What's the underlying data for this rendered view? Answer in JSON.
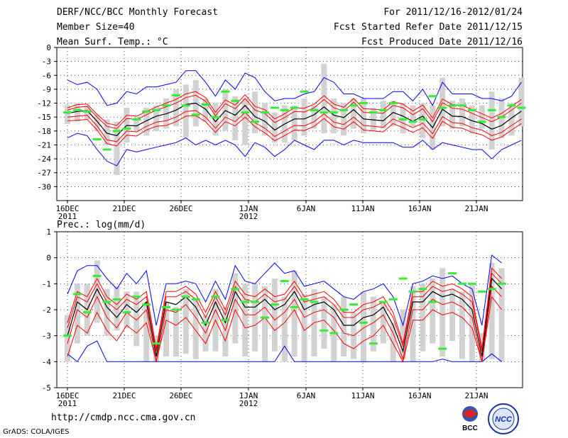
{
  "header": {
    "title": "DERF/NCC/BCC Monthly Forecast",
    "member_size": "Member Size=40",
    "variable1": "Mean Surf. Temp.: °C",
    "period": "For 2011/12/16-2012/01/24",
    "fcst_started": "Fcst Started Refer Date 2011/12/15",
    "fcst_produced": "Fcst Produced Date 2011/12/16"
  },
  "variable2": "Prec.: log(mm/d)",
  "footer": {
    "url": "http://cmdp.ncc.cma.gov.cn",
    "grads": "GrADS: COLA/IGES"
  },
  "logos": {
    "bcc": "BCC",
    "ncc": "NCC"
  },
  "colors": {
    "blue": "#0000ff",
    "red": "#ff0000",
    "black": "#000000",
    "green": "#33ee33",
    "gray": "#d2d2d2"
  },
  "chart_data": [
    {
      "type": "line",
      "title": "Mean Surf. Temp.: °C",
      "x_tick_labels": [
        "16DEC",
        "21DEC",
        "26DEC",
        "1JAN",
        "6JAN",
        "11JAN",
        "16JAN",
        "21JAN"
      ],
      "x_year_labels": [
        "2011",
        "2012"
      ],
      "ylim": [
        -33,
        0
      ],
      "yticks": [
        0,
        -3,
        -6,
        -9,
        -12,
        -15,
        -18,
        -21,
        -24,
        -27,
        -30
      ],
      "mean": [
        -14.2,
        -13.8,
        -13.6,
        -15.9,
        -18.5,
        -19.0,
        -16.8,
        -16.9,
        -15.8,
        -14.8,
        -14.3,
        -13.5,
        -12.3,
        -12.0,
        -13.3,
        -16.0,
        -13.6,
        -14.6,
        -12.5,
        -14.9,
        -15.9,
        -17.8,
        -16.5,
        -15.4,
        -15.4,
        -14.5,
        -12.8,
        -14.6,
        -15.1,
        -13.4,
        -15.4,
        -15.6,
        -15.8,
        -14.0,
        -14.8,
        -15.9,
        -14.8,
        -17.3,
        -13.3,
        -14.8,
        -14.9,
        -15.8,
        -16.4,
        -17.6,
        -16.8,
        -15.2,
        -13.7
      ],
      "upper_red": [
        -13.5,
        -12.9,
        -12.7,
        -15.0,
        -17.0,
        -17.5,
        -15.3,
        -15.5,
        -14.5,
        -13.5,
        -12.8,
        -12.0,
        -10.8,
        -10.3,
        -11.6,
        -14.7,
        -12.1,
        -13.2,
        -11.0,
        -13.5,
        -14.2,
        -16.2,
        -15.1,
        -13.8,
        -13.9,
        -13.0,
        -11.2,
        -13.0,
        -13.7,
        -11.8,
        -14.0,
        -14.1,
        -14.2,
        -12.5,
        -13.0,
        -14.5,
        -13.2,
        -16.0,
        -11.9,
        -13.1,
        -13.3,
        -14.2,
        -15.1,
        -16.0,
        -15.0,
        -13.5,
        -12.0
      ],
      "upper_red2": [
        -13.0,
        -12.3,
        -12.2,
        -14.4,
        -16.3,
        -16.8,
        -14.6,
        -14.8,
        -13.8,
        -12.8,
        -12.0,
        -11.2,
        -10.0,
        -9.5,
        -10.8,
        -14.0,
        -11.3,
        -12.4,
        -10.2,
        -12.7,
        -13.4,
        -15.4,
        -14.3,
        -13.0,
        -13.1,
        -12.2,
        -10.4,
        -12.2,
        -12.9,
        -11.0,
        -13.2,
        -13.3,
        -13.4,
        -11.7,
        -12.2,
        -13.7,
        -12.4,
        -15.2,
        -11.1,
        -12.3,
        -12.5,
        -13.4,
        -14.3,
        -15.2,
        -14.2,
        -12.7,
        -11.2
      ],
      "lower_red": [
        -15.0,
        -14.8,
        -14.6,
        -16.9,
        -19.9,
        -20.3,
        -18.0,
        -18.2,
        -17.0,
        -16.1,
        -15.8,
        -15.0,
        -13.8,
        -13.6,
        -15.0,
        -17.4,
        -15.0,
        -16.0,
        -14.0,
        -16.2,
        -17.4,
        -19.2,
        -18.0,
        -16.8,
        -16.9,
        -16.0,
        -14.3,
        -16.1,
        -16.6,
        -15.0,
        -16.8,
        -17.0,
        -17.2,
        -15.4,
        -16.3,
        -17.3,
        -16.3,
        -18.6,
        -14.9,
        -16.2,
        -16.4,
        -17.3,
        -17.8,
        -19.0,
        -18.3,
        -16.8,
        -15.4
      ],
      "lower_red2": [
        -15.8,
        -15.7,
        -15.5,
        -17.8,
        -20.7,
        -21.2,
        -18.9,
        -19.1,
        -17.8,
        -17.0,
        -16.8,
        -16.0,
        -14.8,
        -14.7,
        -16.0,
        -18.3,
        -16.0,
        -16.9,
        -15.0,
        -17.1,
        -18.4,
        -20.1,
        -19.0,
        -17.8,
        -17.9,
        -17.0,
        -15.3,
        -17.1,
        -17.6,
        -16.0,
        -17.8,
        -18.0,
        -18.2,
        -16.4,
        -17.3,
        -18.3,
        -17.3,
        -19.6,
        -15.9,
        -17.2,
        -17.4,
        -18.3,
        -18.8,
        -20.0,
        -19.3,
        -17.8,
        -16.4
      ],
      "max_blue": [
        -7.0,
        -8.0,
        -7.5,
        -9.0,
        -12.5,
        -12.0,
        -9.5,
        -10.0,
        -8.5,
        -8.5,
        -8.0,
        -7.5,
        -5.0,
        -5.0,
        -7.5,
        -10.5,
        -7.0,
        -9.0,
        -5.5,
        -6.5,
        -9.5,
        -11.5,
        -11.0,
        -11.0,
        -10.0,
        -9.5,
        -6.5,
        -7.5,
        -10.0,
        -10.0,
        -11.0,
        -11.0,
        -11.0,
        -9.5,
        -9.5,
        -11.5,
        -9.0,
        -12.5,
        -7.5,
        -10.0,
        -10.0,
        -10.0,
        -11.0,
        -11.0,
        -11.5,
        -10.5,
        -7.5
      ],
      "min_blue": [
        -19.5,
        -18.5,
        -19.0,
        -22.0,
        -24.5,
        -25.5,
        -22.0,
        -22.5,
        -22.0,
        -21.5,
        -21.0,
        -20.5,
        -19.5,
        -21.0,
        -20.0,
        -21.0,
        -20.0,
        -21.0,
        -23.5,
        -20.5,
        -21.5,
        -23.5,
        -22.0,
        -20.0,
        -21.0,
        -22.0,
        -20.0,
        -20.0,
        -21.0,
        -20.0,
        -20.5,
        -20.5,
        -20.5,
        -20.5,
        -21.5,
        -21.5,
        -20.0,
        -22.0,
        -20.5,
        -21.0,
        -21.5,
        -22.0,
        -22.0,
        -24.0,
        -22.0,
        -21.0,
        -20.0
      ],
      "gray_bars": [
        [
          -16.5,
          -12.5
        ],
        [
          -16.0,
          -12.0
        ],
        [
          -15.5,
          -12.5
        ],
        [
          -18.0,
          -14.5
        ],
        [
          -21.0,
          -15.5
        ],
        [
          -27.5,
          -16.0
        ],
        [
          -20.5,
          -13.0
        ],
        [
          -18.0,
          -15.0
        ],
        [
          -19.0,
          -13.0
        ],
        [
          -18.0,
          -12.5
        ],
        [
          -17.5,
          -11.0
        ],
        [
          -17.0,
          -9.0
        ],
        [
          -19.5,
          -8.0
        ],
        [
          -17.0,
          -7.0
        ],
        [
          -16.0,
          -11.0
        ],
        [
          -19.0,
          -12.0
        ],
        [
          -18.0,
          -9.0
        ],
        [
          -20.0,
          -10.5
        ],
        [
          -21.0,
          -11.0
        ],
        [
          -18.5,
          -9.5
        ],
        [
          -19.0,
          -12.0
        ],
        [
          -20.5,
          -14.0
        ],
        [
          -20.5,
          -12.5
        ],
        [
          -20.0,
          -12.5
        ],
        [
          -19.0,
          -11.0
        ],
        [
          -17.5,
          -12.5
        ],
        [
          -18.5,
          -3.5
        ],
        [
          -18.5,
          -11.0
        ],
        [
          -19.0,
          -12.0
        ],
        [
          -17.5,
          -11.0
        ],
        [
          -18.5,
          -11.0
        ],
        [
          -18.0,
          -13.0
        ],
        [
          -17.5,
          -11.5
        ],
        [
          -17.0,
          -11.5
        ],
        [
          -18.5,
          -12.0
        ],
        [
          -17.0,
          -12.5
        ],
        [
          -19.5,
          -12.0
        ],
        [
          -22.0,
          -12.5
        ],
        [
          -17.0,
          -6.5
        ],
        [
          -17.5,
          -11.5
        ],
        [
          -17.0,
          -11.0
        ],
        [
          -18.5,
          -12.5
        ],
        [
          -17.5,
          -12.5
        ],
        [
          -22.0,
          -9.5
        ],
        [
          -19.5,
          -11.0
        ],
        [
          -19.0,
          -12.0
        ],
        [
          -17.0,
          -6.5
        ]
      ],
      "green_marks": [
        -14.0,
        -13.5,
        -13.8,
        -19.8,
        -22.0,
        -18.0,
        -17.5,
        -15.5,
        -13.8,
        -13.5,
        -12.5,
        -10.3,
        -12.5,
        -14.5,
        -12.3,
        -15.0,
        -9.5,
        -11.5,
        -14.0,
        -16.0,
        -14.0,
        -13.0,
        -13.5,
        -13.0,
        -9.5,
        -13.5,
        -14.0,
        -14.0,
        -13.5,
        -12.5,
        -12.0,
        -14.0,
        -13.5,
        -12.0,
        -15.5,
        -16.0,
        -15.5,
        -10.5,
        -13.0,
        -12.5,
        -12.5,
        -13.5,
        -16.0,
        -13.5,
        -15.0,
        -12.5,
        -13.0
      ]
    },
    {
      "type": "line",
      "title": "Prec.: log(mm/d)",
      "x_tick_labels": [
        "16DEC",
        "21DEC",
        "26DEC",
        "1JAN",
        "6JAN",
        "11JAN",
        "16JAN",
        "21JAN"
      ],
      "x_year_labels": [
        "2011",
        "2012"
      ],
      "ylim": [
        -5,
        1
      ],
      "yticks": [
        1,
        0,
        -1,
        -2,
        -3,
        -4,
        -5
      ],
      "mean": [
        -3.0,
        -1.7,
        -2.0,
        -1.2,
        -1.9,
        -2.3,
        -1.8,
        -2.1,
        -1.7,
        -3.8,
        -1.7,
        -1.8,
        -1.5,
        -1.9,
        -2.6,
        -1.7,
        -2.5,
        -1.3,
        -1.9,
        -1.9,
        -1.6,
        -2.0,
        -1.8,
        -1.3,
        -2.0,
        -1.8,
        -1.7,
        -2.0,
        -2.6,
        -2.6,
        -2.3,
        -2.2,
        -1.9,
        -2.6,
        -3.6,
        -1.7,
        -1.7,
        -1.3,
        -1.5,
        -1.4,
        -1.6,
        -2.0,
        -3.8,
        -0.8,
        -1.2
      ],
      "upper_red": [
        -2.7,
        -1.5,
        -1.7,
        -1.0,
        -1.7,
        -2.0,
        -1.6,
        -1.8,
        -1.5,
        -3.6,
        -1.5,
        -1.5,
        -1.3,
        -1.6,
        -2.3,
        -1.5,
        -2.2,
        -1.1,
        -1.6,
        -1.7,
        -1.4,
        -1.7,
        -1.6,
        -1.1,
        -1.7,
        -1.6,
        -1.5,
        -1.8,
        -2.3,
        -2.3,
        -2.0,
        -1.9,
        -1.7,
        -2.3,
        -3.4,
        -1.5,
        -1.5,
        -1.1,
        -1.3,
        -1.2,
        -1.4,
        -1.7,
        -3.6,
        -0.6,
        -1.0
      ],
      "upper_red2": [
        -2.5,
        -1.3,
        -1.5,
        -0.8,
        -1.5,
        -1.8,
        -1.4,
        -1.6,
        -1.3,
        -3.5,
        -1.3,
        -1.3,
        -1.1,
        -1.4,
        -2.1,
        -1.3,
        -2.0,
        -0.9,
        -1.4,
        -1.5,
        -1.2,
        -1.5,
        -1.4,
        -0.9,
        -1.5,
        -1.4,
        -1.3,
        -1.6,
        -2.1,
        -2.1,
        -1.8,
        -1.7,
        -1.5,
        -2.1,
        -3.3,
        -1.3,
        -1.3,
        -0.9,
        -1.1,
        -1.0,
        -1.2,
        -1.5,
        -3.5,
        -0.4,
        -0.8
      ],
      "lower_red": [
        -3.3,
        -2.0,
        -2.3,
        -1.5,
        -2.3,
        -2.7,
        -2.1,
        -2.4,
        -2.0,
        -4.0,
        -2.0,
        -2.1,
        -1.8,
        -2.3,
        -2.9,
        -2.0,
        -2.8,
        -1.6,
        -2.2,
        -2.2,
        -1.9,
        -2.4,
        -2.1,
        -1.6,
        -2.3,
        -2.1,
        -2.0,
        -2.3,
        -2.9,
        -3.0,
        -2.7,
        -2.5,
        -2.2,
        -2.9,
        -3.9,
        -2.0,
        -2.0,
        -1.6,
        -1.8,
        -1.7,
        -1.9,
        -2.3,
        -4.0,
        -1.1,
        -1.5
      ],
      "lower_red2": [
        -3.8,
        -2.6,
        -2.9,
        -2.1,
        -2.8,
        -3.2,
        -2.6,
        -2.9,
        -2.5,
        -4.0,
        -2.4,
        -2.6,
        -2.3,
        -2.8,
        -3.3,
        -2.4,
        -3.2,
        -2.0,
        -2.7,
        -2.6,
        -2.3,
        -2.8,
        -2.5,
        -2.0,
        -2.8,
        -2.5,
        -2.4,
        -2.8,
        -3.3,
        -3.5,
        -3.2,
        -3.0,
        -2.6,
        -3.3,
        -4.0,
        -2.4,
        -2.4,
        -2.0,
        -2.2,
        -2.1,
        -2.3,
        -2.7,
        -4.0,
        -1.5,
        -2.0
      ],
      "max_blue": [
        -1.4,
        -0.5,
        -0.3,
        -0.3,
        -0.8,
        -1.2,
        -0.6,
        -1.0,
        -0.5,
        -2.6,
        -1.0,
        -1.0,
        -0.9,
        -1.0,
        -1.7,
        -0.9,
        -1.6,
        -0.3,
        -0.9,
        -1.0,
        -0.6,
        -0.2,
        -0.6,
        -0.5,
        -1.1,
        -1.0,
        -0.9,
        -1.2,
        -1.5,
        -1.6,
        -1.3,
        -1.2,
        -1.0,
        -1.5,
        -2.6,
        -1.0,
        -0.9,
        -0.7,
        -0.8,
        -0.7,
        -1.0,
        -1.2,
        -2.6,
        0.1,
        -0.2
      ],
      "min_blue": [
        -3.7,
        -4.0,
        -3.4,
        -3.2,
        -4.0,
        -4.0,
        -4.0,
        -4.0,
        -4.0,
        -4.0,
        -4.0,
        -4.0,
        -4.0,
        -4.0,
        -4.0,
        -4.0,
        -4.0,
        -4.0,
        -4.0,
        -4.0,
        -4.0,
        -4.0,
        -3.4,
        -4.0,
        -4.0,
        -4.0,
        -4.0,
        -4.0,
        -4.0,
        -4.0,
        -4.0,
        -4.0,
        -4.0,
        -4.0,
        -4.0,
        -4.0,
        -4.0,
        -4.0,
        -3.9,
        -4.0,
        -4.0,
        -4.0,
        -4.0,
        -3.7,
        -4.0
      ],
      "gray_bars": [
        [
          -4.0,
          -2.2
        ],
        [
          -3.3,
          -1.0
        ],
        [
          -3.0,
          -1.0
        ],
        [
          -2.5,
          -0.1
        ],
        [
          -3.0,
          -1.2
        ],
        [
          -2.8,
          -1.1
        ],
        [
          -2.7,
          -1.3
        ],
        [
          -3.4,
          -1.3
        ],
        [
          -4.0,
          -1.7
        ],
        [
          -4.0,
          -3.0
        ],
        [
          -3.8,
          -1.7
        ],
        [
          -3.8,
          -1.9
        ],
        [
          -3.7,
          -1.2
        ],
        [
          -3.9,
          -1.6
        ],
        [
          -3.6,
          -2.2
        ],
        [
          -3.6,
          -1.2
        ],
        [
          -3.8,
          -1.9
        ],
        [
          -3.3,
          -0.6
        ],
        [
          -3.8,
          -1.0
        ],
        [
          -3.6,
          -1.0
        ],
        [
          -4.0,
          -1.1
        ],
        [
          -3.6,
          -0.8
        ],
        [
          -4.0,
          -1.5
        ],
        [
          -3.8,
          -0.5
        ],
        [
          -4.0,
          -1.4
        ],
        [
          -3.8,
          -1.2
        ],
        [
          -3.5,
          -1.5
        ],
        [
          -4.0,
          -1.8
        ],
        [
          -3.8,
          -1.5
        ],
        [
          -3.9,
          -2.1
        ],
        [
          -4.0,
          -1.3
        ],
        [
          -3.6,
          -1.5
        ],
        [
          -3.3,
          -1.7
        ],
        [
          -4.0,
          -2.5
        ],
        [
          -3.9,
          -2.0
        ],
        [
          -4.0,
          -1.1
        ],
        [
          -3.6,
          -1.0
        ],
        [
          -3.3,
          -0.8
        ],
        [
          -3.8,
          -0.4
        ],
        [
          -3.2,
          -1.2
        ],
        [
          -3.9,
          -1.3
        ],
        [
          -4.0,
          -1.0
        ],
        [
          -4.0,
          -2.9
        ],
        [
          -3.9,
          -0.2
        ],
        [
          -4.0,
          -0.4
        ]
      ],
      "green_marks": [
        -3.0,
        -1.4,
        -2.1,
        -0.7,
        -1.7,
        -1.6,
        -2.1,
        -1.5,
        -1.8,
        -3.3,
        -1.9,
        -2.0,
        -1.5,
        -1.6,
        -2.5,
        -1.5,
        -2.4,
        -1.2,
        -1.7,
        -1.7,
        -2.3,
        -1.8,
        -0.9,
        -1.9,
        -1.6,
        -1.7,
        -2.8,
        -2.9,
        -2.0,
        -1.8,
        -2.5,
        -3.3,
        -1.7,
        -1.6,
        -0.8,
        -1.3,
        -1.2,
        -1.7,
        -3.5,
        -0.6,
        -1.0,
        -1.0,
        -1.3,
        -1.2,
        -1.0
      ]
    }
  ]
}
